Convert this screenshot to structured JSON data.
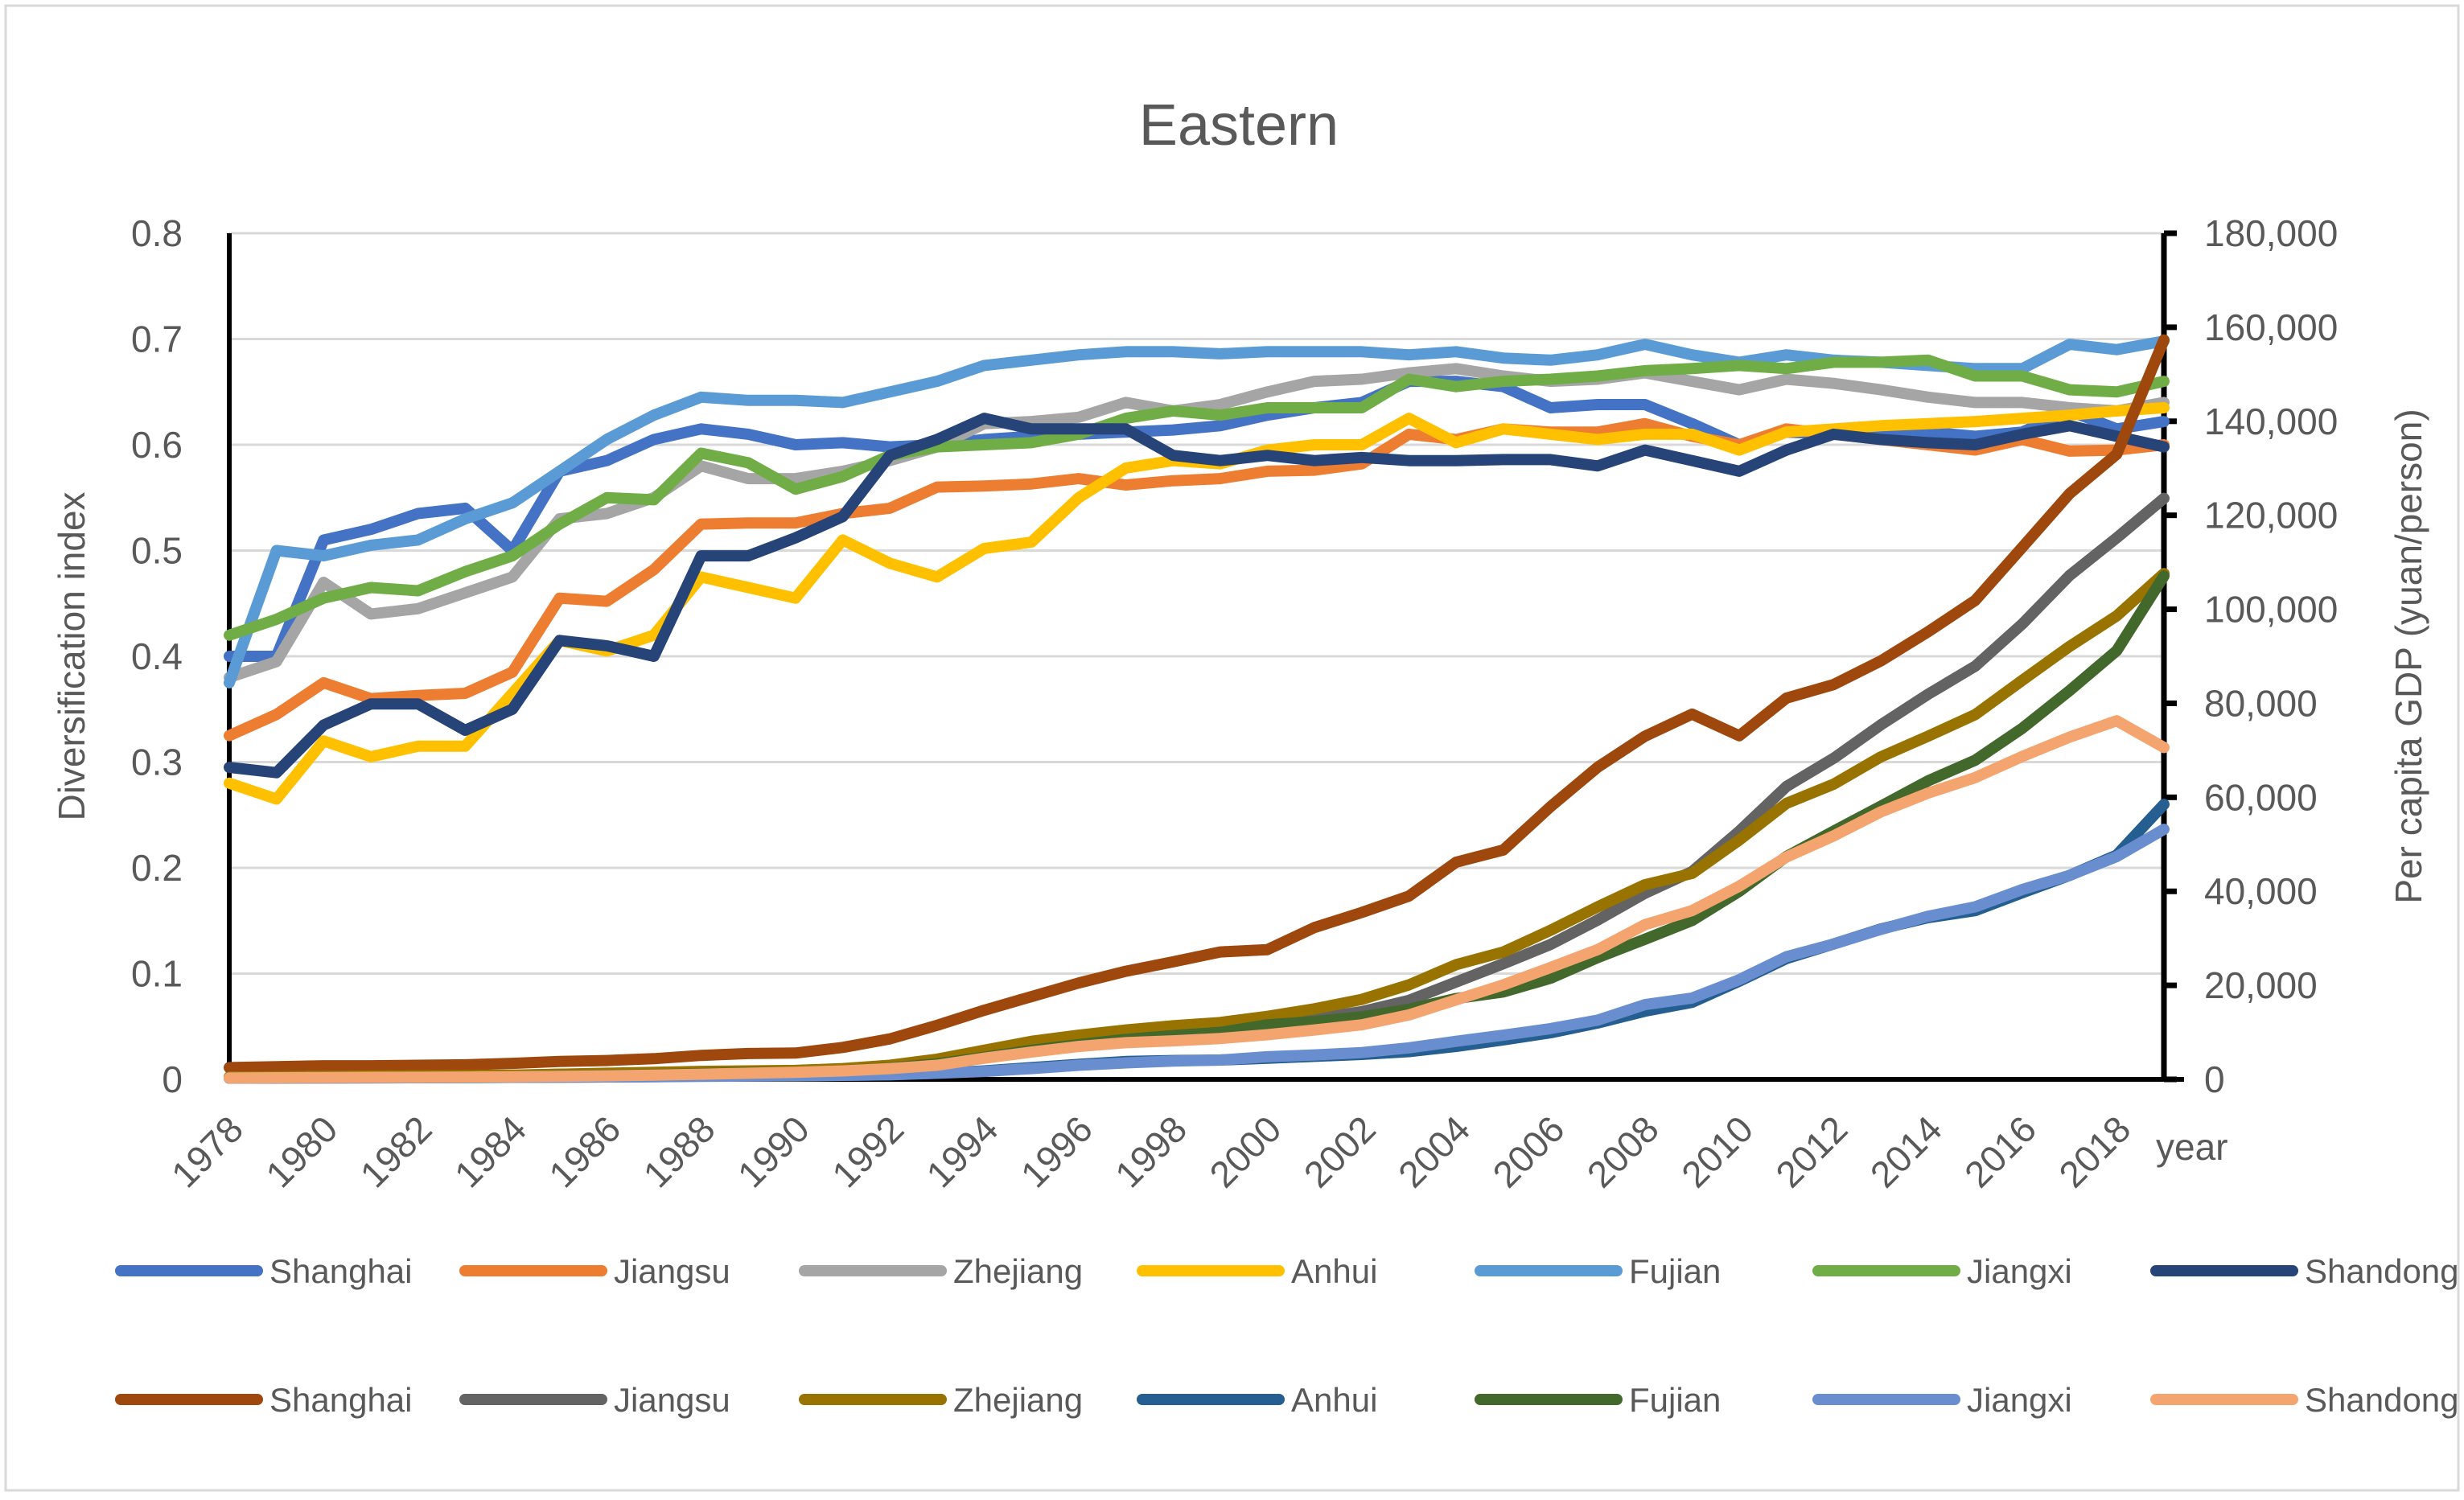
{
  "chart_data": {
    "type": "line",
    "title": "Eastern",
    "ylabel": "Diversification index",
    "y2label": "Per capita GDP (yuan/person)",
    "xlabel": "year",
    "ylim": [
      0,
      0.8
    ],
    "y2lim": [
      0,
      180000
    ],
    "yticks": [
      "0",
      "0.1",
      "0.2",
      "0.3",
      "0.4",
      "0.5",
      "0.6",
      "0.7",
      "0.8"
    ],
    "y2ticks": [
      "0",
      "20,000",
      "40,000",
      "60,000",
      "80,000",
      "100,000",
      "120,000",
      "140,000",
      "160,000",
      "180,000"
    ],
    "x": [
      1978,
      1979,
      1980,
      1981,
      1982,
      1983,
      1984,
      1985,
      1986,
      1987,
      1988,
      1989,
      1990,
      1991,
      1992,
      1993,
      1994,
      1995,
      1996,
      1997,
      1998,
      1999,
      2000,
      2001,
      2002,
      2003,
      2004,
      2005,
      2006,
      2007,
      2008,
      2009,
      2010,
      2011,
      2012,
      2013,
      2014,
      2015,
      2016,
      2017,
      2018,
      2019
    ],
    "xticks": [
      "1978",
      "1980",
      "1982",
      "1984",
      "1986",
      "1988",
      "1990",
      "1992",
      "1994",
      "1996",
      "1998",
      "2000",
      "2002",
      "2004",
      "2006",
      "2008",
      "2010",
      "2012",
      "2014",
      "2016",
      "2018"
    ],
    "grid": true,
    "legend_position": "bottom",
    "series": [
      {
        "name": "Shanghai",
        "axis": "left",
        "color": "#4472C4",
        "values": [
          0.4,
          0.4,
          0.51,
          0.52,
          0.535,
          0.54,
          0.5,
          0.575,
          0.585,
          0.605,
          0.615,
          0.61,
          0.6,
          0.602,
          0.598,
          0.6,
          0.605,
          0.608,
          0.61,
          0.612,
          0.614,
          0.618,
          0.628,
          0.635,
          0.64,
          0.66,
          0.66,
          0.655,
          0.635,
          0.638,
          0.638,
          0.62,
          0.6,
          0.612,
          0.61,
          0.608,
          0.612,
          0.608,
          0.612,
          0.632,
          0.615,
          0.622
        ]
      },
      {
        "name": "Jiangsu",
        "axis": "left",
        "color": "#ED7D31",
        "values": [
          0.325,
          0.345,
          0.375,
          0.36,
          0.363,
          0.365,
          0.385,
          0.455,
          0.452,
          0.482,
          0.525,
          0.526,
          0.526,
          0.535,
          0.54,
          0.56,
          0.561,
          0.563,
          0.568,
          0.562,
          0.566,
          0.568,
          0.575,
          0.576,
          0.582,
          0.61,
          0.605,
          0.615,
          0.612,
          0.612,
          0.62,
          0.608,
          0.6,
          0.615,
          0.61,
          0.605,
          0.6,
          0.595,
          0.605,
          0.594,
          0.595,
          0.6
        ]
      },
      {
        "name": "Zhejiang",
        "axis": "left",
        "color": "#A5A5A5",
        "values": [
          0.38,
          0.395,
          0.47,
          0.44,
          0.445,
          0.46,
          0.475,
          0.53,
          0.535,
          0.55,
          0.58,
          0.568,
          0.568,
          0.575,
          0.585,
          0.598,
          0.62,
          0.622,
          0.626,
          0.64,
          0.632,
          0.638,
          0.65,
          0.66,
          0.662,
          0.668,
          0.672,
          0.665,
          0.66,
          0.662,
          0.668,
          0.66,
          0.652,
          0.662,
          0.658,
          0.652,
          0.645,
          0.64,
          0.64,
          0.635,
          0.632,
          0.64
        ]
      },
      {
        "name": "Anhui",
        "axis": "left",
        "color": "#FFC000",
        "values": [
          0.28,
          0.265,
          0.32,
          0.305,
          0.315,
          0.315,
          0.365,
          0.415,
          0.405,
          0.42,
          0.475,
          0.465,
          0.455,
          0.51,
          0.488,
          0.475,
          0.502,
          0.508,
          0.55,
          0.578,
          0.585,
          0.582,
          0.595,
          0.6,
          0.6,
          0.625,
          0.602,
          0.615,
          0.61,
          0.605,
          0.61,
          0.61,
          0.595,
          0.612,
          0.615,
          0.618,
          0.62,
          0.622,
          0.625,
          0.628,
          0.632,
          0.635
        ]
      },
      {
        "name": "Fujian",
        "axis": "left",
        "color": "#5B9BD5",
        "values": [
          0.375,
          0.5,
          0.495,
          0.505,
          0.51,
          0.53,
          0.545,
          0.575,
          0.605,
          0.628,
          0.645,
          0.642,
          0.642,
          0.64,
          0.65,
          0.66,
          0.675,
          0.68,
          0.685,
          0.688,
          0.688,
          0.686,
          0.688,
          0.688,
          0.688,
          0.685,
          0.688,
          0.682,
          0.68,
          0.685,
          0.695,
          0.685,
          0.678,
          0.685,
          0.68,
          0.678,
          0.675,
          0.672,
          0.672,
          0.695,
          0.69,
          0.698
        ]
      },
      {
        "name": "Jiangxi",
        "axis": "left",
        "color": "#70AD47",
        "values": [
          0.42,
          0.435,
          0.455,
          0.465,
          0.462,
          0.48,
          0.495,
          0.525,
          0.55,
          0.548,
          0.592,
          0.583,
          0.558,
          0.57,
          0.59,
          0.598,
          0.6,
          0.602,
          0.61,
          0.625,
          0.632,
          0.628,
          0.635,
          0.635,
          0.635,
          0.662,
          0.655,
          0.66,
          0.662,
          0.665,
          0.67,
          0.672,
          0.675,
          0.672,
          0.678,
          0.678,
          0.68,
          0.665,
          0.665,
          0.652,
          0.65,
          0.66
        ]
      },
      {
        "name": "Shandong",
        "axis": "left",
        "color": "#264478",
        "values": [
          0.295,
          0.29,
          0.335,
          0.355,
          0.355,
          0.33,
          0.35,
          0.415,
          0.41,
          0.4,
          0.495,
          0.495,
          0.512,
          0.532,
          0.59,
          0.605,
          0.625,
          0.615,
          0.615,
          0.615,
          0.59,
          0.585,
          0.59,
          0.585,
          0.588,
          0.585,
          0.585,
          0.586,
          0.586,
          0.58,
          0.595,
          0.585,
          0.575,
          0.595,
          0.61,
          0.605,
          0.602,
          0.6,
          0.61,
          0.618,
          0.608,
          0.598
        ]
      },
      {
        "name": "Shanghai",
        "axis": "right",
        "color": "#9E480E",
        "values": [
          2500,
          2700,
          2900,
          2900,
          3000,
          3100,
          3400,
          3800,
          4000,
          4400,
          5100,
          5500,
          5600,
          6800,
          8600,
          11500,
          14700,
          17600,
          20500,
          23000,
          25000,
          27100,
          27600,
          32300,
          35500,
          39000,
          46200,
          48800,
          58000,
          66400,
          73000,
          77700,
          73100,
          81100,
          84000,
          89000,
          95200,
          101900,
          113200,
          124600,
          133000,
          157300
        ]
      },
      {
        "name": "Jiangsu",
        "axis": "right",
        "color": "#636363",
        "values": [
          500,
          550,
          600,
          650,
          700,
          750,
          850,
          1100,
          1200,
          1400,
          1600,
          1700,
          1800,
          2200,
          2800,
          3600,
          5100,
          6800,
          8000,
          9100,
          9800,
          10600,
          11500,
          12900,
          14400,
          16800,
          20700,
          24600,
          28700,
          33900,
          39600,
          44200,
          52800,
          62300,
          68300,
          75400,
          81900,
          87900,
          96900,
          107200,
          115200,
          123600
        ]
      },
      {
        "name": "Zhejiang",
        "axis": "right",
        "color": "#997300",
        "values": [
          500,
          550,
          650,
          700,
          750,
          800,
          900,
          1100,
          1300,
          1500,
          1700,
          1800,
          1900,
          2300,
          3000,
          4300,
          6200,
          8100,
          9400,
          10500,
          11400,
          12100,
          13400,
          15000,
          17000,
          20100,
          24400,
          27100,
          31700,
          36700,
          41400,
          43800,
          50900,
          58700,
          62800,
          68600,
          73000,
          77600,
          84900,
          92100,
          98600,
          107600
        ]
      },
      {
        "name": "Anhui",
        "axis": "right",
        "color": "#255E91",
        "values": [
          250,
          280,
          300,
          320,
          350,
          370,
          420,
          480,
          520,
          580,
          700,
          750,
          800,
          850,
          950,
          1300,
          1800,
          2500,
          3200,
          3800,
          4000,
          4100,
          4500,
          4900,
          5300,
          5900,
          7000,
          8400,
          9900,
          12000,
          14500,
          16400,
          20900,
          25700,
          28800,
          32000,
          34400,
          35900,
          39700,
          43400,
          47700,
          58500
        ]
      },
      {
        "name": "Fujian",
        "axis": "right",
        "color": "#43682B",
        "values": [
          300,
          350,
          400,
          420,
          450,
          480,
          550,
          700,
          800,
          950,
          1200,
          1400,
          1500,
          1800,
          2400,
          3300,
          4700,
          6200,
          7400,
          8500,
          9300,
          10000,
          11600,
          12300,
          13300,
          14900,
          17200,
          18600,
          21500,
          25900,
          29800,
          33800,
          40000,
          47400,
          52800,
          58100,
          63500,
          67900,
          74700,
          82700,
          91200,
          107100
        ]
      },
      {
        "name": "Jiangxi",
        "axis": "right",
        "color": "#698ED0",
        "values": [
          250,
          270,
          300,
          320,
          350,
          380,
          420,
          480,
          520,
          560,
          650,
          700,
          750,
          850,
          1000,
          1300,
          1700,
          2300,
          3000,
          3500,
          3900,
          4100,
          4800,
          5200,
          5700,
          6700,
          8100,
          9400,
          10800,
          12600,
          15900,
          17300,
          21200,
          26100,
          28800,
          31900,
          34700,
          36700,
          40400,
          43400,
          47400,
          53200
        ]
      },
      {
        "name": "Shandong",
        "axis": "right",
        "color": "#F4A46E",
        "values": [
          300,
          350,
          400,
          420,
          450,
          500,
          550,
          650,
          750,
          900,
          1100,
          1300,
          1500,
          1800,
          2300,
          3000,
          4500,
          5800,
          7000,
          7800,
          8200,
          8700,
          9500,
          10500,
          11600,
          13700,
          16900,
          20100,
          23800,
          27600,
          32900,
          35900,
          41100,
          47300,
          51800,
          56900,
          60900,
          64200,
          68700,
          72800,
          76300,
          70600
        ]
      }
    ]
  }
}
